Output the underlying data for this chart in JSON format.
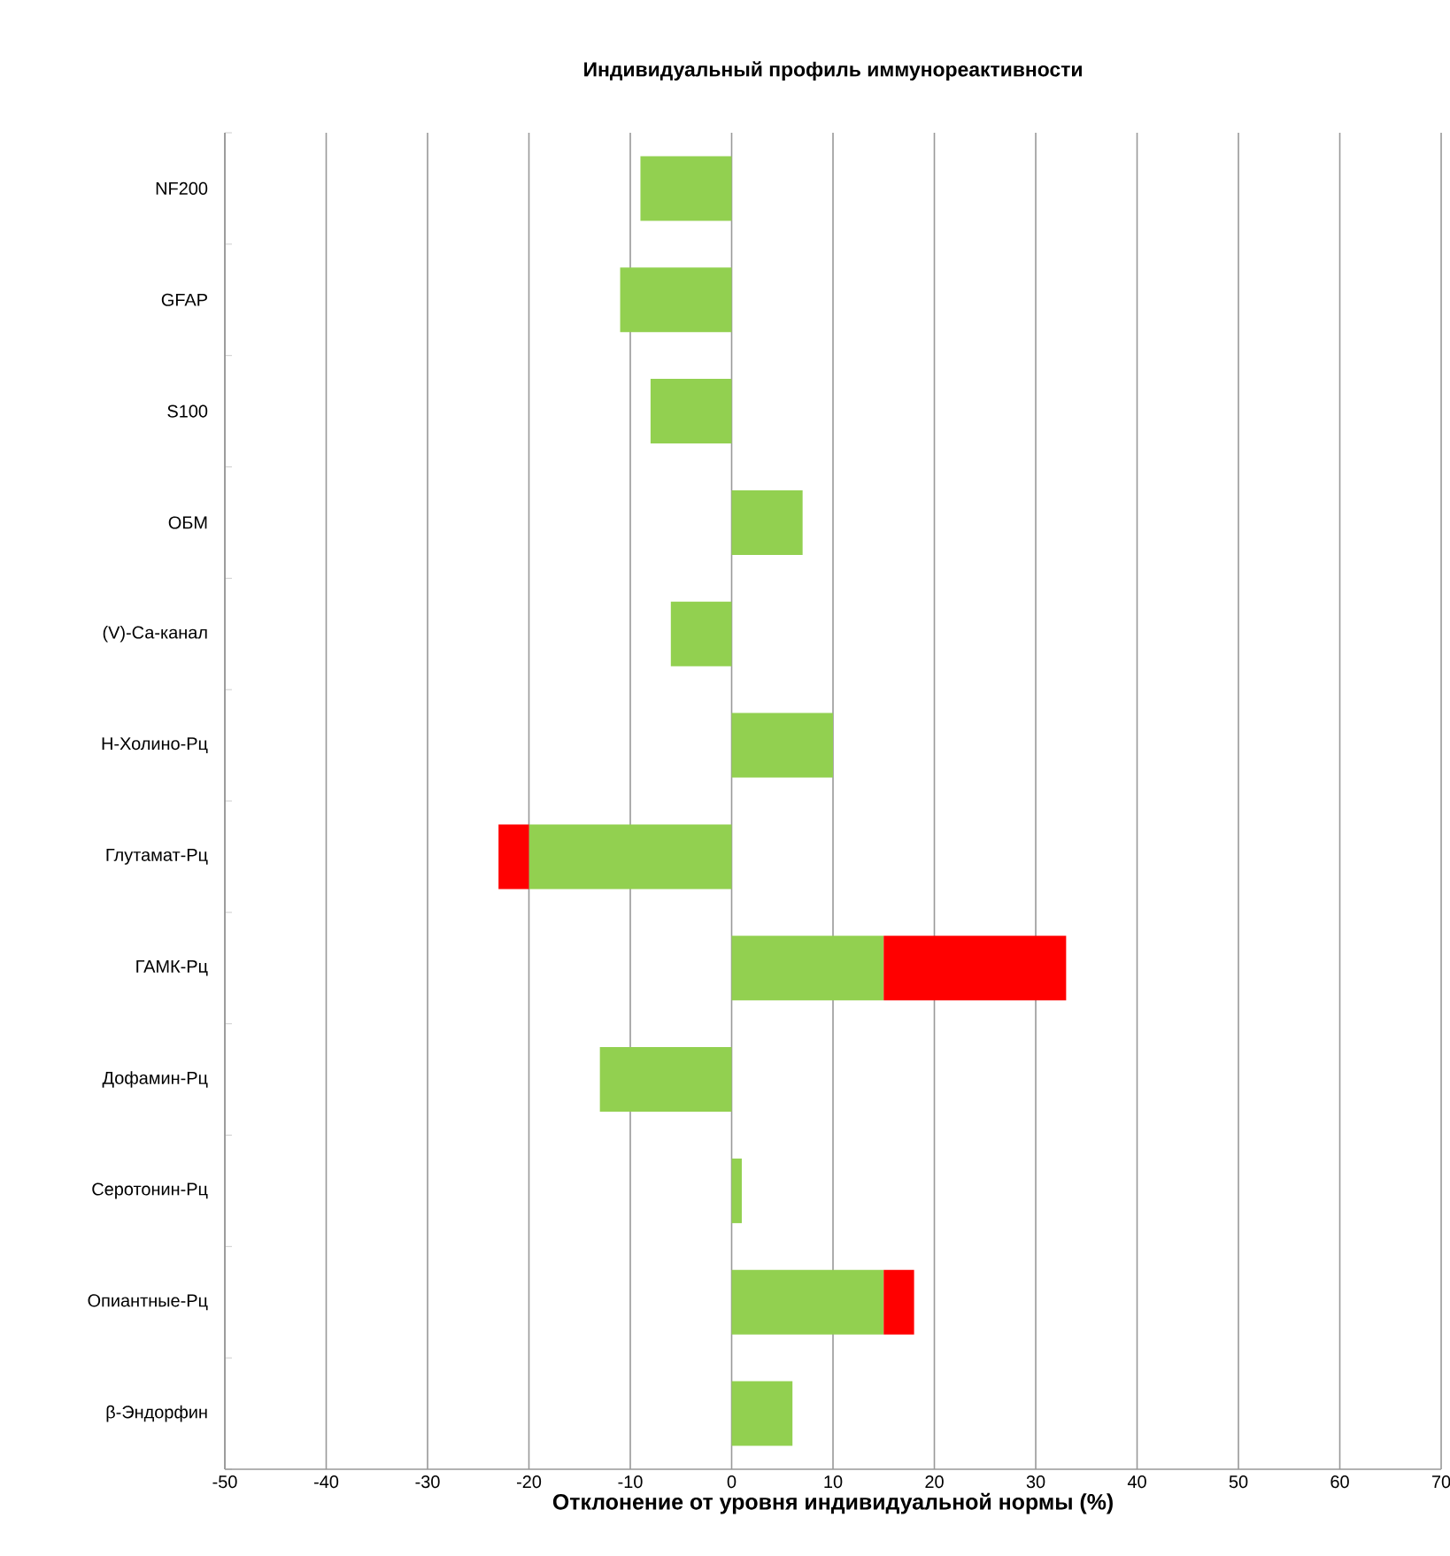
{
  "chart_data": {
    "type": "bar",
    "orientation": "horizontal",
    "stacked": true,
    "title": "Индивидуальный профиль иммунореактивности",
    "xlabel": "Отклонение от уровня индивидуальной нормы (%)",
    "categories": [
      "NF200",
      "GFAP",
      "S100",
      "ОБМ",
      "(V)-Са-канал",
      "Н-Холино-Рц",
      "Глутамат-Рц",
      "ГАМК-Рц",
      "Дофамин-Рц",
      "Серотонин-Рц",
      "Опиантные-Рц",
      "β-Эндорфин"
    ],
    "series": [
      {
        "color": "#92d050",
        "values": [
          -9,
          -11,
          -8,
          7,
          -6,
          10,
          -20,
          15,
          -13,
          1,
          15,
          6
        ]
      },
      {
        "color": "#ff0000",
        "values": [
          null,
          null,
          null,
          null,
          null,
          null,
          -3,
          18,
          null,
          null,
          3,
          null
        ]
      }
    ],
    "xlim": [
      -50,
      70
    ],
    "xticks": [
      -50,
      -40,
      -30,
      -20,
      -10,
      0,
      10,
      20,
      30,
      40,
      50,
      60,
      70
    ],
    "grid": "x"
  }
}
